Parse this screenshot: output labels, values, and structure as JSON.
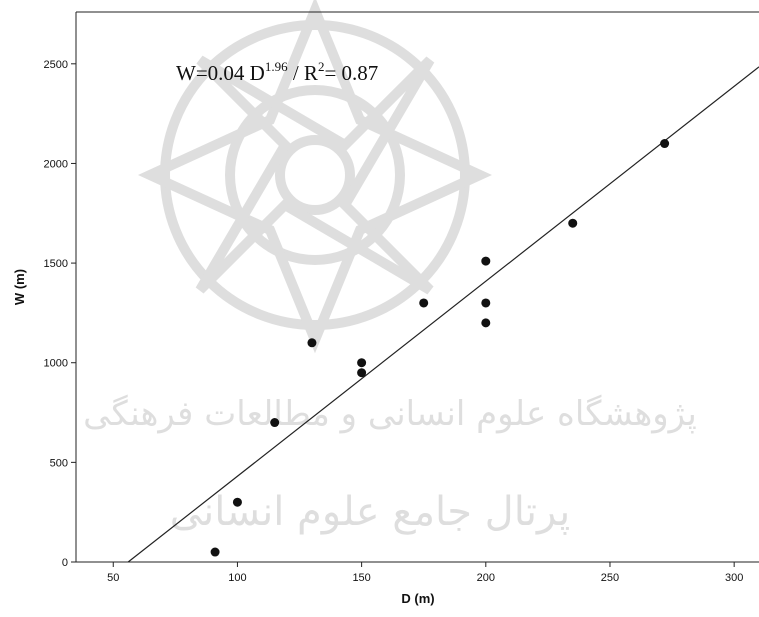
{
  "chart_data": {
    "type": "scatter",
    "title": "",
    "xlabel": "D (m)",
    "ylabel": "W (m)",
    "xlim": [
      35,
      310
    ],
    "ylim": [
      0,
      2760
    ],
    "xticks": [
      50,
      100,
      150,
      200,
      250,
      300
    ],
    "yticks": [
      0,
      500,
      1000,
      1500,
      2000,
      2500
    ],
    "x_tick_labels": [
      "50",
      "100",
      "150",
      "200",
      "250",
      "300"
    ],
    "y_tick_labels": [
      "0",
      "500",
      "1000",
      "1500",
      "2000",
      "2500"
    ],
    "grid": false,
    "legend": "none",
    "points": {
      "x": [
        91,
        100,
        115,
        130,
        150,
        150,
        175,
        200,
        200,
        200,
        235,
        272
      ],
      "y": [
        50,
        300,
        700,
        1100,
        1000,
        950,
        1300,
        1510,
        1300,
        1200,
        1700,
        2100
      ]
    },
    "fit_line": {
      "x": [
        56,
        310
      ],
      "y": [
        0,
        2485
      ]
    },
    "annotation": {
      "prefix": "W=0.04 D",
      "exponent": "1.96",
      "middle": " / R",
      "r_exponent": "2",
      "suffix": "= 0.87"
    },
    "colors": {
      "point": "#111111",
      "line": "#222222",
      "axis": "#222222",
      "watermark": "#b8b8b8"
    }
  },
  "watermark": {
    "line1": "پژوهشگاه علوم انسانی و مطالعات فرهنگی",
    "line2": "پرتال جامع علوم انسانی"
  }
}
